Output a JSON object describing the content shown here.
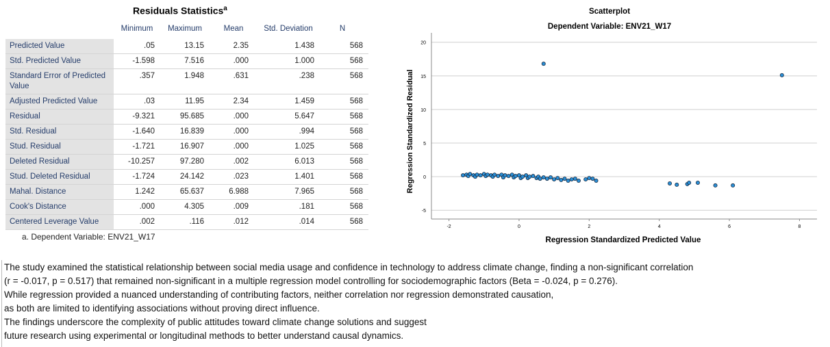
{
  "table": {
    "title": "Residuals Statistics",
    "title_note": "a",
    "header": [
      "Minimum",
      "Maximum",
      "Mean",
      "Std. Deviation",
      "N"
    ],
    "rows": [
      [
        "Predicted Value",
        ".05",
        "13.15",
        "2.35",
        "1.438",
        "568"
      ],
      [
        "Std. Predicted Value",
        "-1.598",
        "7.516",
        ".000",
        "1.000",
        "568"
      ],
      [
        "Standard Error of Predicted Value",
        ".357",
        "1.948",
        ".631",
        ".238",
        "568"
      ],
      [
        "Adjusted Predicted Value",
        ".03",
        "11.95",
        "2.34",
        "1.459",
        "568"
      ],
      [
        "Residual",
        "-9.321",
        "95.685",
        ".000",
        "5.647",
        "568"
      ],
      [
        "Std. Residual",
        "-1.640",
        "16.839",
        ".000",
        ".994",
        "568"
      ],
      [
        "Stud. Residual",
        "-1.721",
        "16.907",
        ".000",
        "1.025",
        "568"
      ],
      [
        "Deleted Residual",
        "-10.257",
        "97.280",
        ".002",
        "6.013",
        "568"
      ],
      [
        "Stud. Deleted Residual",
        "-1.724",
        "24.142",
        ".023",
        "1.401",
        "568"
      ],
      [
        "Mahal. Distance",
        "1.242",
        "65.637",
        "6.988",
        "7.965",
        "568"
      ],
      [
        "Cook's Distance",
        ".000",
        "4.305",
        ".009",
        ".181",
        "568"
      ],
      [
        "Centered Leverage Value",
        ".002",
        ".116",
        ".012",
        ".014",
        "568"
      ]
    ],
    "footnote": "a. Dependent Variable: ENV21_W17"
  },
  "chart_data": {
    "type": "scatter",
    "title": "Scatterplot",
    "subtitle": "Dependent Variable: ENV21_W17",
    "x_label": "Regression Standardized Predicted Value",
    "y_label": "Regression Standardized Residual",
    "x": [
      -1.6,
      -1.5,
      -1.45,
      -1.4,
      -1.3,
      -1.25,
      -1.2,
      -1.1,
      -1.0,
      -0.95,
      -0.9,
      -0.8,
      -0.75,
      -0.7,
      -0.6,
      -0.5,
      -0.45,
      -0.4,
      -0.3,
      -0.2,
      -0.15,
      -0.1,
      0,
      0.05,
      0.1,
      0.2,
      0.25,
      0.3,
      0.4,
      0.5,
      0.55,
      0.6,
      0.7,
      0.8,
      0.9,
      1.0,
      1.1,
      1.2,
      1.3,
      1.4,
      1.5,
      1.6,
      1.7,
      1.9,
      2.0,
      2.1,
      2.2,
      0.7,
      7.5,
      4.3,
      4.5,
      4.8,
      4.85,
      5.1,
      5.6,
      6.1
    ],
    "values": [
      0.2,
      0.3,
      0.1,
      0.4,
      0.2,
      0.0,
      0.3,
      0.2,
      0.4,
      0.1,
      0.3,
      0.2,
      0.0,
      0.3,
      0.1,
      0.3,
      -0.1,
      0.2,
      0.1,
      0.3,
      -0.1,
      0.1,
      0.2,
      -0.2,
      0.0,
      0.2,
      -0.2,
      0.0,
      0.1,
      -0.2,
      0.0,
      -0.3,
      -0.1,
      -0.3,
      -0.1,
      -0.4,
      -0.2,
      -0.5,
      -0.3,
      -0.6,
      -0.4,
      -0.3,
      -0.6,
      -0.4,
      -0.2,
      -0.3,
      -0.6,
      16.8,
      15.1,
      -1.0,
      -1.2,
      -1.1,
      -0.9,
      -0.9,
      -1.3,
      -1.3
    ],
    "color": "#2a8fd6",
    "xlim": [
      -2.5,
      8.5
    ],
    "ylim": [
      -6.3,
      21.4
    ],
    "xticks": [
      -2,
      0,
      2,
      4,
      6,
      8
    ],
    "yticks": [
      -5,
      0,
      5,
      10,
      15,
      20
    ],
    "grid": true
  },
  "paragraph": [
    "The study examined the statistical relationship between social media usage and confidence in technology to address climate change, finding a non-significant correlation",
    "(r = -0.017, p = 0.517) that remained non-significant in a multiple regression model controlling for sociodemographic factors (Beta = -0.024, p = 0.276).",
    "While regression provided a nuanced understanding of contributing factors, neither correlation nor regression demonstrated causation,",
    "as both are limited to identifying associations without proving direct influence.",
    "The findings underscore the complexity of public attitudes toward climate change solutions and suggest",
    "future research using experimental or longitudinal methods to better understand causal dynamics."
  ]
}
